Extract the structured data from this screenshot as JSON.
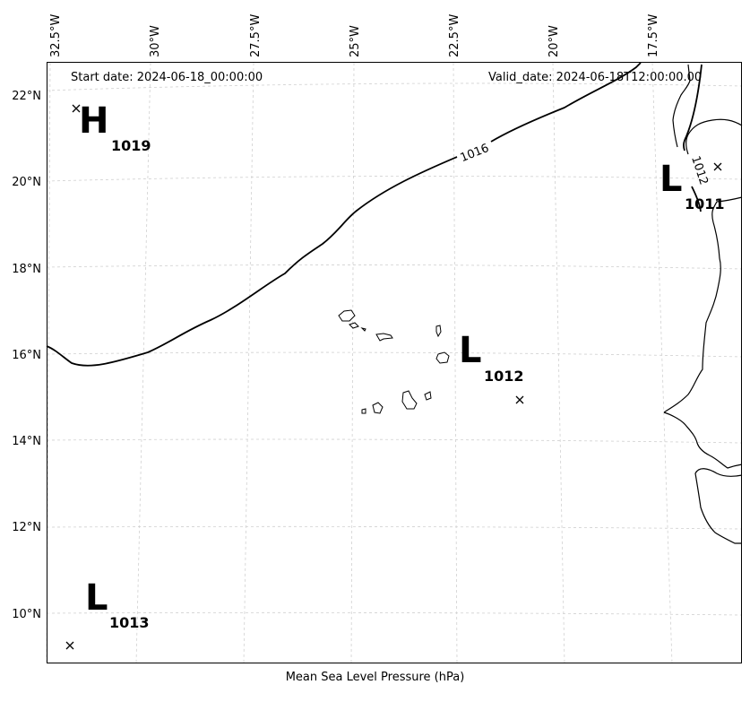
{
  "header": {
    "start_date": "Start date: 2024-06-18_00:00:00",
    "valid_date": "Valid_date: 2024-06-18T12:00:00.00"
  },
  "xlabel": "Mean Sea Level Pressure (hPa)",
  "lon_ticks": [
    "32.5°W",
    "30°W",
    "27.5°W",
    "25°W",
    "22.5°W",
    "20°W",
    "17.5°W"
  ],
  "lat_ticks": [
    "22°N",
    "20°N",
    "18°N",
    "16°N",
    "14°N",
    "12°N",
    "10°N"
  ],
  "pressure_systems": [
    {
      "letter": "H",
      "value": "1019",
      "lon": -32.3,
      "lat": 21.7
    },
    {
      "letter": "L",
      "value": "1011",
      "lon": -16.0,
      "lat": 20.4
    },
    {
      "letter": "L",
      "value": "1012",
      "lon": -21.0,
      "lat": 14.9
    },
    {
      "letter": "L",
      "value": "1013",
      "lon": -32.5,
      "lat": 9.3
    }
  ],
  "contours": [
    {
      "level": "1016",
      "label": "1016"
    },
    {
      "level": "1012",
      "label": "1012"
    }
  ],
  "colors": {
    "contour": "#000000",
    "coast": "#000000",
    "grid": "#cccccc",
    "background": "#ffffff"
  }
}
